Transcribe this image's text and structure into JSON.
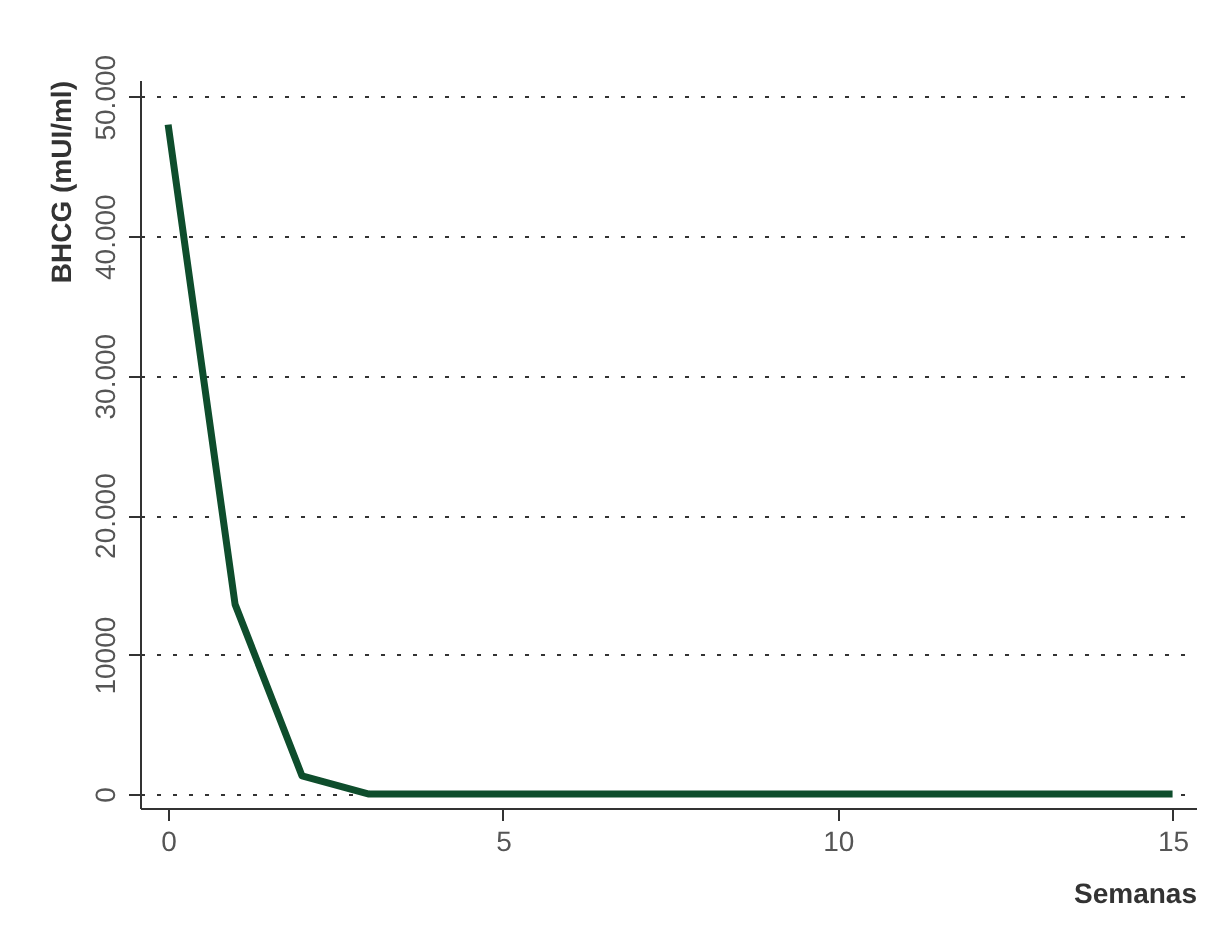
{
  "chart_data": {
    "type": "line",
    "xlabel": "Semanas",
    "ylabel": "BHCG (mUI/ml)",
    "x": [
      0,
      1,
      2,
      3,
      4,
      5,
      6,
      7,
      8,
      9,
      10,
      11,
      12,
      13,
      14,
      15
    ],
    "series": [
      {
        "color": "#0e4d2c",
        "values": [
          48000,
          13600,
          1300,
          0,
          0,
          0,
          0,
          0,
          0,
          0,
          0,
          0,
          0,
          0,
          0,
          0
        ]
      }
    ],
    "xlim": [
      -0.42,
      15.35
    ],
    "xticks": [
      0,
      5,
      10,
      15
    ],
    "ylim": [
      -1000,
      51200
    ],
    "yticks": [
      0,
      {
        "value": 10000,
        "label": "10000"
      },
      {
        "value": 20000,
        "label": "20.000"
      },
      {
        "value": 30000,
        "label": "30.000"
      },
      {
        "value": 40000,
        "label": "40.000"
      },
      {
        "value": 50000,
        "label": "50.000"
      }
    ],
    "grid": "y",
    "marker": "none",
    "line_style": "solid"
  }
}
